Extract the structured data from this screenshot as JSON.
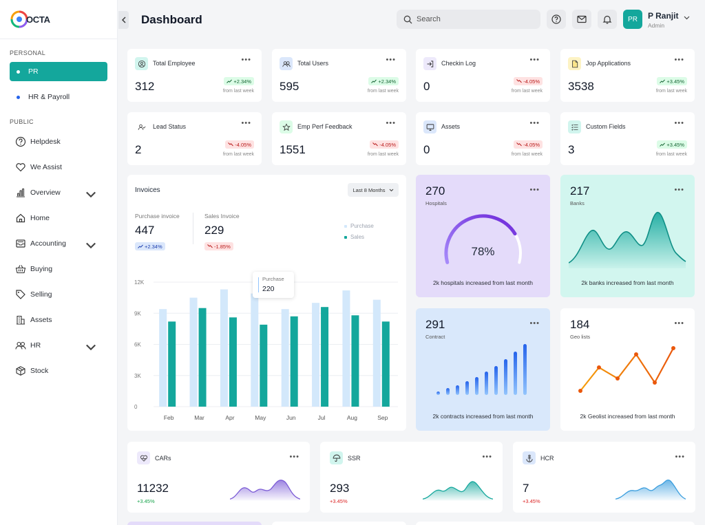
{
  "app": {
    "logo_text": "OCTA"
  },
  "sidebar": {
    "personal_title": "PERSONAL",
    "personal_items": [
      {
        "label": "PR",
        "active": true
      },
      {
        "label": "HR & Payroll",
        "active": false
      }
    ],
    "public_title": "PUBLIC",
    "public_items": [
      {
        "label": "Helpdesk",
        "icon": "question-circle-icon",
        "has_chevron": false
      },
      {
        "label": "We Assist",
        "icon": "heart-icon",
        "has_chevron": false
      },
      {
        "label": "Overview",
        "icon": "bar-chart-icon",
        "has_chevron": true
      },
      {
        "label": "Home",
        "icon": "home-icon",
        "has_chevron": false
      },
      {
        "label": "Accounting",
        "icon": "inbox-icon",
        "has_chevron": true
      },
      {
        "label": "Buying",
        "icon": "basket-icon",
        "has_chevron": false
      },
      {
        "label": "Selling",
        "icon": "tag-icon",
        "has_chevron": false
      },
      {
        "label": "Assets",
        "icon": "building-icon",
        "has_chevron": false
      },
      {
        "label": "HR",
        "icon": "users-icon",
        "has_chevron": true
      },
      {
        "label": "Stock",
        "icon": "box-icon",
        "has_chevron": false
      }
    ]
  },
  "header": {
    "title": "Dashboard",
    "search_placeholder": "Search",
    "user": {
      "initials": "PR",
      "name": "P Ranjit",
      "role": "Admin"
    }
  },
  "stats": [
    {
      "label": "Total Employee",
      "value": "312",
      "change": "+2.34%",
      "trend": "up",
      "sub": "from last week",
      "icon": "user-circle-icon",
      "icon_bg": "#d1f5ee"
    },
    {
      "label": "Total Users",
      "value": "595",
      "change": "+2.34%",
      "trend": "up",
      "sub": "from last week",
      "icon": "users-icon",
      "icon_bg": "#dbe7fb"
    },
    {
      "label": "Checkin Log",
      "value": "0",
      "change": "-4.05%",
      "trend": "down",
      "sub": "from last week",
      "icon": "login-icon",
      "icon_bg": "#ede9fb"
    },
    {
      "label": "Jop Applications",
      "value": "3538",
      "change": "+3.45%",
      "trend": "up",
      "sub": "from last week",
      "icon": "file-icon",
      "icon_bg": "#fdf3c4"
    },
    {
      "label": "Lead Status",
      "value": "2",
      "change": "-4.05%",
      "trend": "down",
      "sub": "from last week",
      "icon": "user-check-icon",
      "icon_bg": "#ffffff"
    },
    {
      "label": "Emp Perf Feedback",
      "value": "1551",
      "change": "-4.05%",
      "trend": "down",
      "sub": "from last week",
      "icon": "star-icon",
      "icon_bg": "#dcfce7"
    },
    {
      "label": "Assets",
      "value": "0",
      "change": "-4.05%",
      "trend": "down",
      "sub": "from last week",
      "icon": "monitor-icon",
      "icon_bg": "#dbe7fb"
    },
    {
      "label": "Custom Fields",
      "value": "3",
      "change": "+3.45%",
      "trend": "up",
      "sub": "from last week",
      "icon": "list-icon",
      "icon_bg": "#d1f5ee"
    }
  ],
  "invoices": {
    "title": "Invoices",
    "range": "Last 8 Months",
    "purchase": {
      "label": "Purchase invoice",
      "value": "447",
      "change": "+2.34%"
    },
    "sales": {
      "label": "Sales Invoice",
      "value": "229",
      "change": "-1.85%"
    },
    "tooltip": {
      "label": "Purchase",
      "value": "220"
    }
  },
  "chart_data": {
    "type": "bar",
    "categories": [
      "Feb",
      "Mar",
      "Apr",
      "May",
      "Jun",
      "Jul",
      "Aug",
      "Sep"
    ],
    "series": [
      {
        "name": "Purchase",
        "color": "#d3e8fb",
        "values": [
          9400,
          10500,
          11300,
          10900,
          9400,
          10000,
          11200,
          10300
        ]
      },
      {
        "name": "Sales",
        "color": "#14a79c",
        "values": [
          8200,
          9500,
          8600,
          7900,
          8700,
          9600,
          8800,
          8200
        ]
      }
    ],
    "ylim": [
      0,
      12000
    ],
    "yticks": [
      "0",
      "3K",
      "6K",
      "9K",
      "12K"
    ],
    "legend": "top-right",
    "grid": true
  },
  "hospitals": {
    "value": "270",
    "label": "Hospitals",
    "percent": 78,
    "percent_text": "78%",
    "footer": "2k hospitals increased from last month",
    "bg": "#e4dbfa"
  },
  "banks": {
    "value": "217",
    "label": "Banks",
    "footer": "2k banks increased from last month",
    "bg": "#d2f6ef"
  },
  "contract": {
    "value": "291",
    "label": "Contract",
    "footer": "2k contracts increased from last month",
    "bg": "#d9e8fb"
  },
  "geo": {
    "value": "184",
    "label": "Geo lists",
    "footer": "2k Geolist increased from last month"
  },
  "bottom_cards": [
    {
      "label": "CARs",
      "value": "11232",
      "change": "+3.45%",
      "icon": "heart-pulse-icon",
      "icon_bg": "#ede9fb",
      "color": "#7c5cd6"
    },
    {
      "label": "SSR",
      "value": "293",
      "change": "+3.45%",
      "icon": "umbrella-icon",
      "icon_bg": "#d1f5ee",
      "color": "#14a79c"
    },
    {
      "label": "HCR",
      "value": "7",
      "change": "+3.45%",
      "icon": "anchor-icon",
      "icon_bg": "#dbe7fb",
      "color": "#3b9ede"
    }
  ]
}
